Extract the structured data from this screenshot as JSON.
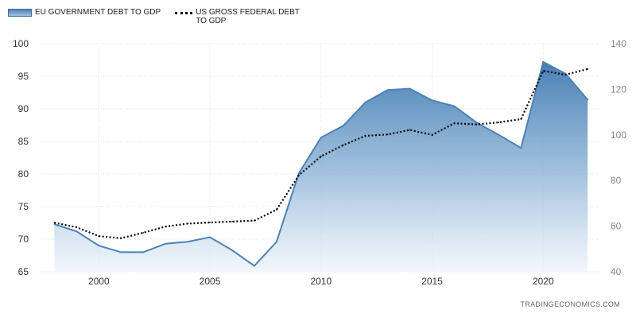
{
  "legend": {
    "eu_label": "EU GOVERNMENT DEBT TO GDP",
    "us_label": "US GROSS FEDERAL DEBT TO GDP"
  },
  "credit": "TRADINGECONOMICS.COM",
  "colors": {
    "eu_line": "#4a82b6",
    "eu_fill_top": "#3e79b0",
    "us_line": "#000000",
    "grid": "#e2e2e2"
  },
  "chart_data": {
    "type": "area",
    "xlim": [
      1998,
      2022
    ],
    "x_ticks": [
      2000,
      2005,
      2010,
      2015,
      2020
    ],
    "ylim_left": [
      65,
      100
    ],
    "y_ticks_left": [
      65,
      70,
      75,
      80,
      85,
      90,
      95,
      100
    ],
    "ylim_right": [
      40,
      140
    ],
    "y_ticks_right": [
      40,
      60,
      80,
      100,
      120,
      140
    ],
    "grid": true,
    "legend_position": "top-left",
    "series": [
      {
        "name": "EU GOVERNMENT DEBT TO GDP",
        "axis": "left",
        "style": "area",
        "x": [
          1998,
          1999,
          2000,
          2001,
          2002,
          2003,
          2004,
          2005,
          2006,
          2007,
          2008,
          2009,
          2010,
          2011,
          2012,
          2013,
          2014,
          2015,
          2016,
          2017,
          2018,
          2019,
          2020,
          2021,
          2022
        ],
        "y": [
          72.3,
          71.2,
          69.0,
          68.0,
          68.0,
          69.3,
          69.6,
          70.3,
          68.3,
          65.9,
          69.6,
          80.1,
          85.6,
          87.4,
          91.0,
          92.9,
          93.1,
          91.3,
          90.4,
          87.9,
          86.0,
          84.0,
          97.2,
          95.4,
          91.4
        ]
      },
      {
        "name": "US GROSS FEDERAL DEBT TO GDP",
        "axis": "right",
        "style": "dotted-line",
        "x": [
          1998,
          1999,
          2000,
          2001,
          2002,
          2003,
          2004,
          2005,
          2006,
          2007,
          2008,
          2009,
          2010,
          2011,
          2012,
          2013,
          2014,
          2015,
          2016,
          2017,
          2018,
          2019,
          2020,
          2021,
          2022
        ],
        "y": [
          61.5,
          59.5,
          55.6,
          54.7,
          57.1,
          59.8,
          61.1,
          61.6,
          62.0,
          62.4,
          67.2,
          82.3,
          90.6,
          95.5,
          99.6,
          100.2,
          102.2,
          100.0,
          105.1,
          104.6,
          105.5,
          106.9,
          128.1,
          126.4,
          128.9
        ]
      }
    ]
  }
}
